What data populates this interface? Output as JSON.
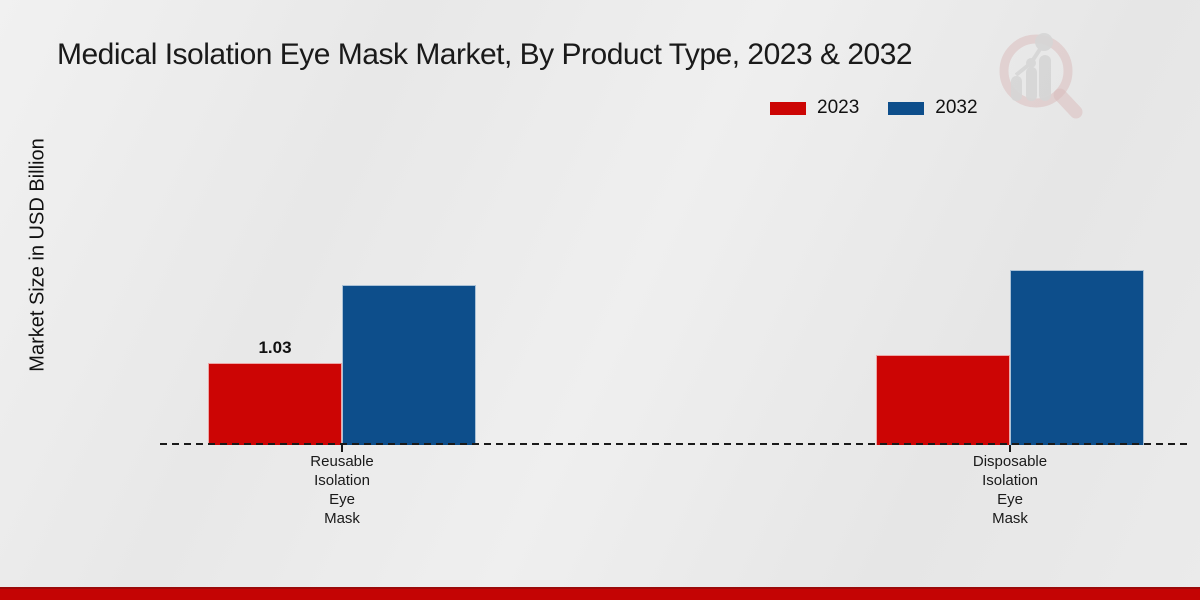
{
  "title": "Medical Isolation Eye Mask Market, By Product Type, 2023 & 2032",
  "y_axis_label": "Market Size in USD Billion",
  "legend": {
    "items": [
      {
        "label": "2023",
        "color": "#cc0504"
      },
      {
        "label": "2032",
        "color": "#0d4e8b"
      }
    ]
  },
  "chart_data": {
    "type": "bar",
    "title": "Medical Isolation Eye Mask Market, By Product Type, 2023 & 2032",
    "xlabel": "",
    "ylabel": "Market Size in USD Billion",
    "value_unit": "USD Billion",
    "categories": [
      "Reusable Isolation Eye Mask",
      "Disposable Isolation Eye Mask"
    ],
    "series": [
      {
        "name": "2023",
        "color": "#cc0504",
        "values": [
          1.03,
          1.12
        ],
        "data_labels": [
          "1.03",
          ""
        ]
      },
      {
        "name": "2032",
        "color": "#0d4e8b",
        "values": [
          2.0,
          2.19
        ],
        "data_labels": [
          "",
          ""
        ]
      }
    ],
    "ylim": [
      0,
      2.5
    ],
    "grid": false,
    "legend_position": "top-right",
    "baseline_style": "dashed",
    "axis_ticks_visible": false,
    "y_tick_labels_visible": false
  },
  "watermark": {
    "icon": "magnifier-bar-chart-logo",
    "ring_color": "#cf9a9a",
    "glyph_color": "#c7c7c7"
  },
  "footer": {
    "bar_color": "#c40404"
  }
}
